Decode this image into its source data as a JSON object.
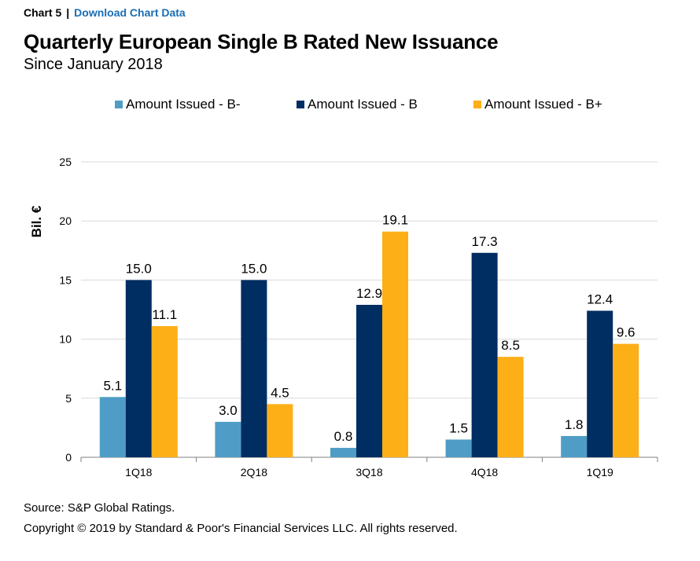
{
  "header": {
    "chart_number": "Chart 5",
    "separator": "|",
    "link": "Download Chart Data"
  },
  "footer": {
    "source": "Source: S&P Global Ratings.",
    "copyright": "Copyright © 2019 by Standard & Poor's Financial Services LLC. All rights reserved."
  },
  "colors": {
    "link": "#1a6eb5",
    "grid": "#d9d9d9",
    "axis": "#808080"
  },
  "chart_data": {
    "type": "bar",
    "title": "Quarterly European Single B Rated New Issuance",
    "subtitle": "Since January 2018",
    "ylabel": "Bil. €",
    "xlabel": "",
    "ylim": [
      0,
      25
    ],
    "yticks": [
      0,
      5,
      10,
      15,
      20,
      25
    ],
    "grid": true,
    "legend_position": "top",
    "categories": [
      "1Q18",
      "2Q18",
      "3Q18",
      "4Q18",
      "1Q19"
    ],
    "series": [
      {
        "name": "Amount Issued - B-",
        "color": "#4f9dc6",
        "values": [
          5.1,
          3.0,
          0.8,
          1.5,
          1.8
        ],
        "labels": [
          "5.1",
          "3.0",
          "0.8",
          "1.5",
          "1.8"
        ]
      },
      {
        "name": "Amount Issued - B",
        "color": "#002d62",
        "values": [
          15.0,
          15.0,
          12.9,
          17.3,
          12.4
        ],
        "labels": [
          "15.0",
          "15.0",
          "12.9",
          "17.3",
          "12.4"
        ]
      },
      {
        "name": "Amount Issued - B+",
        "color": "#fcaf17",
        "values": [
          11.1,
          4.5,
          19.1,
          8.5,
          9.6
        ],
        "labels": [
          "11.1",
          "4.5",
          "19.1",
          "8.5",
          "9.6"
        ]
      }
    ]
  }
}
